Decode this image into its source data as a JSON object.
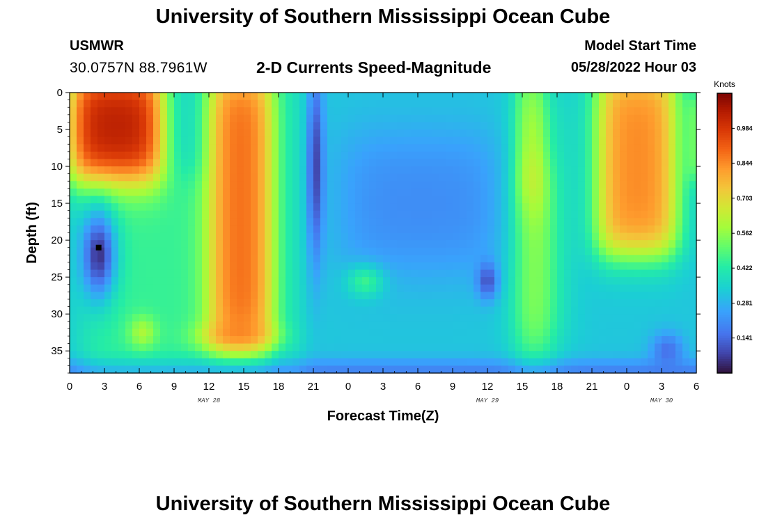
{
  "header": {
    "title": "University of Southern Mississippi Ocean Cube",
    "station": "USMWR",
    "coordinates": "30.0757N  88.7961W",
    "subtitle": "2-D Currents Speed-Magnitude",
    "model_start_label": "Model Start Time",
    "model_start_value": "05/28/2022 Hour 03"
  },
  "footer": {
    "title": "University of Southern Mississippi Ocean Cube"
  },
  "chart_data": {
    "type": "heatmap",
    "title": "2-D Currents Speed-Magnitude",
    "xlabel": "Forecast Time(Z)",
    "ylabel": "Depth (ft)",
    "x_range_hours": [
      0,
      54
    ],
    "y_range_ft": [
      0,
      38
    ],
    "x_tick_labels": [
      "0",
      "3",
      "6",
      "9",
      "12",
      "15",
      "18",
      "21",
      "0",
      "3",
      "6",
      "9",
      "12",
      "15",
      "18",
      "21",
      "0",
      "3",
      "6"
    ],
    "y_ticks": [
      0,
      5,
      10,
      15,
      20,
      25,
      30,
      35
    ],
    "date_labels": [
      {
        "label": "MAY 28",
        "hour": 12
      },
      {
        "label": "MAY 29",
        "hour": 36
      },
      {
        "label": "MAY 30",
        "hour": 51
      }
    ],
    "colorbar": {
      "unit": "Knots",
      "range": [
        0,
        1.125
      ],
      "ticks": [
        "0.141",
        "0.281",
        "0.422",
        "0.562",
        "0.703",
        "0.844",
        "0.984"
      ],
      "tick_values": [
        0.141,
        0.281,
        0.422,
        0.562,
        0.703,
        0.844,
        0.984
      ]
    },
    "marker": {
      "hour": 2.5,
      "depth_ft": 21
    },
    "features": [
      {
        "type": "slab",
        "t0": 0,
        "t1": 8,
        "d0": 0,
        "d1": 12,
        "value": 1.05,
        "note": "surface maximum"
      },
      {
        "type": "slab",
        "t0": 12,
        "t1": 17.5,
        "d0": 0,
        "d1": 35,
        "value": 0.9
      },
      {
        "type": "blob",
        "t": 2.5,
        "d": 22,
        "st": 1.5,
        "sd": 6,
        "value": 0.05,
        "note": "minimum"
      },
      {
        "type": "blob",
        "t": 21.2,
        "d": 10,
        "st": 0.7,
        "sd": 13,
        "value": 0.08
      },
      {
        "type": "blob",
        "t": 36,
        "d": 25.5,
        "st": 0.9,
        "sd": 2.5,
        "value": 0.1
      },
      {
        "type": "slab",
        "t0": 45.5,
        "t1": 52.3,
        "d0": 0,
        "d1": 22,
        "value": 0.85
      },
      {
        "type": "blob",
        "t": 51.5,
        "d": 35,
        "st": 1.4,
        "sd": 2.5,
        "value": 0.15
      }
    ]
  }
}
